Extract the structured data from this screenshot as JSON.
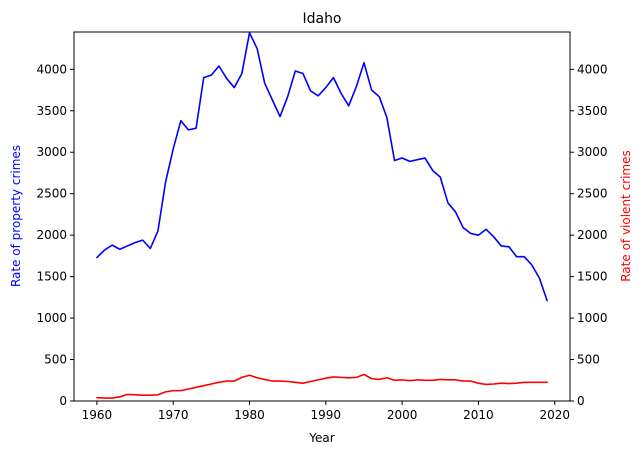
{
  "chart_data": {
    "type": "line",
    "title": "Idaho",
    "xlabel": "Year",
    "ylabel_left": "Rate of property crimes",
    "ylabel_right": "Rate of violent crimes",
    "xlim": [
      1957,
      2022
    ],
    "ylim_left": [
      0,
      4450
    ],
    "ylim_right": [
      0,
      4450
    ],
    "x_ticks": [
      1960,
      1970,
      1980,
      1990,
      2000,
      2010,
      2020
    ],
    "y_ticks_left": [
      0,
      500,
      1000,
      1500,
      2000,
      2500,
      3000,
      3500,
      4000
    ],
    "y_ticks_right": [
      0,
      500,
      1000,
      1500,
      2000,
      2500,
      3000,
      3500,
      4000
    ],
    "grid": false,
    "legend": "none",
    "x": [
      1960,
      1961,
      1962,
      1963,
      1964,
      1965,
      1966,
      1967,
      1968,
      1969,
      1970,
      1971,
      1972,
      1973,
      1974,
      1975,
      1976,
      1977,
      1978,
      1979,
      1980,
      1981,
      1982,
      1983,
      1984,
      1985,
      1986,
      1987,
      1988,
      1989,
      1990,
      1991,
      1992,
      1993,
      1994,
      1995,
      1996,
      1997,
      1998,
      1999,
      2000,
      2001,
      2002,
      2003,
      2004,
      2005,
      2006,
      2007,
      2008,
      2009,
      2010,
      2011,
      2012,
      2013,
      2014,
      2015,
      2016,
      2017,
      2018,
      2019
    ],
    "series": [
      {
        "axis": "left",
        "color": "#0000ff",
        "values": [
          1730,
          1820,
          1880,
          1830,
          1870,
          1910,
          1940,
          1840,
          2050,
          2640,
          3040,
          3380,
          3270,
          3290,
          3900,
          3930,
          4040,
          3890,
          3780,
          3950,
          4440,
          4250,
          3830,
          3630,
          3430,
          3670,
          3980,
          3950,
          3740,
          3680,
          3780,
          3900,
          3710,
          3560,
          3790,
          4080,
          3750,
          3670,
          3420,
          2900,
          2930,
          2890,
          2910,
          2930,
          2780,
          2700,
          2390,
          2280,
          2090,
          2020,
          2000,
          2070,
          1980,
          1870,
          1860,
          1740,
          1740,
          1640,
          1480,
          1210
        ]
      },
      {
        "axis": "right",
        "color": "#ff0000",
        "values": [
          40,
          35,
          35,
          50,
          80,
          75,
          70,
          70,
          75,
          110,
          125,
          125,
          145,
          165,
          185,
          205,
          225,
          240,
          240,
          285,
          310,
          280,
          260,
          240,
          240,
          235,
          225,
          215,
          235,
          255,
          275,
          290,
          285,
          280,
          285,
          320,
          270,
          260,
          280,
          250,
          255,
          245,
          255,
          250,
          250,
          260,
          255,
          255,
          240,
          240,
          215,
          200,
          205,
          215,
          210,
          215,
          225,
          225,
          225,
          225
        ]
      }
    ]
  }
}
